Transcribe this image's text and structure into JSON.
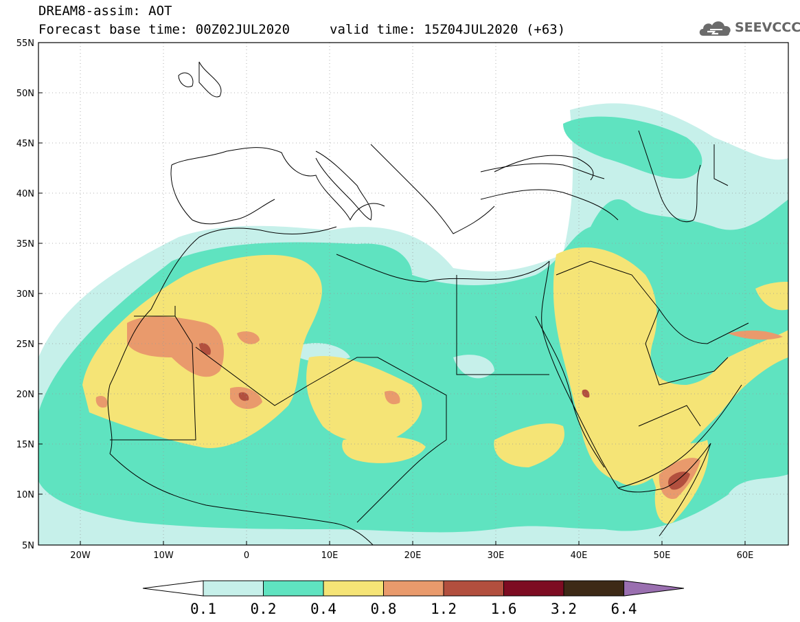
{
  "header": {
    "line1": "DREAM8-assim: AOT",
    "line2": "Forecast base time: 00Z02JUL2020",
    "valid_time": "valid time: 15Z04JUL2020 (+63)",
    "logo_text": "SEEVCCC",
    "logo_icon": "cloud-icon"
  },
  "map": {
    "lat_labels": [
      "55N",
      "50N",
      "45N",
      "40N",
      "35N",
      "30N",
      "25N",
      "20N",
      "15N",
      "10N",
      "5N"
    ],
    "lon_labels": [
      "20W",
      "10W",
      "0",
      "10E",
      "20E",
      "30E",
      "40E",
      "50E",
      "60E"
    ],
    "lon_range": [
      -25,
      65
    ],
    "lat_range": [
      5,
      55
    ],
    "grid": "dotted"
  },
  "colorbar": {
    "labels": [
      "0.1",
      "0.2",
      "0.4",
      "0.8",
      "1.2",
      "1.6",
      "3.2",
      "6.4"
    ],
    "colors": [
      "#c6f0ea",
      "#5fe3c0",
      "#f5e476",
      "#e99a6c",
      "#b24f3e",
      "#7d0c22",
      "#3d2a16"
    ],
    "under_color": "#ffffff",
    "over_color": "#9a6fb0"
  }
}
